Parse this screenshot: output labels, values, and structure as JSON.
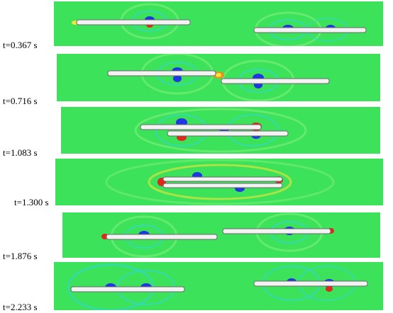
{
  "figure": {
    "description_kind": "CFD pressure contour snapshots of two passing trains",
    "colors": {
      "field_base": "#39e35a",
      "field_light": "#7ff07a",
      "cyan": "#2fd8d2",
      "blue": "#1f35e6",
      "red": "#e0271d",
      "yellow": "#f2e536",
      "orange": "#f28a1e",
      "train_body": "#f3f3f3",
      "train_outline": "#6a6a6a"
    },
    "panels": [
      {
        "id": "p1",
        "time_label": "t=0.367 s"
      },
      {
        "id": "p2",
        "time_label": "t=0.716 s"
      },
      {
        "id": "p3",
        "time_label": "t=1.083 s"
      },
      {
        "id": "p4",
        "time_label": "t=1.300 s"
      },
      {
        "id": "p5",
        "time_label": "t=1.876 s"
      },
      {
        "id": "p6",
        "time_label": "t=2.233 s"
      }
    ]
  }
}
